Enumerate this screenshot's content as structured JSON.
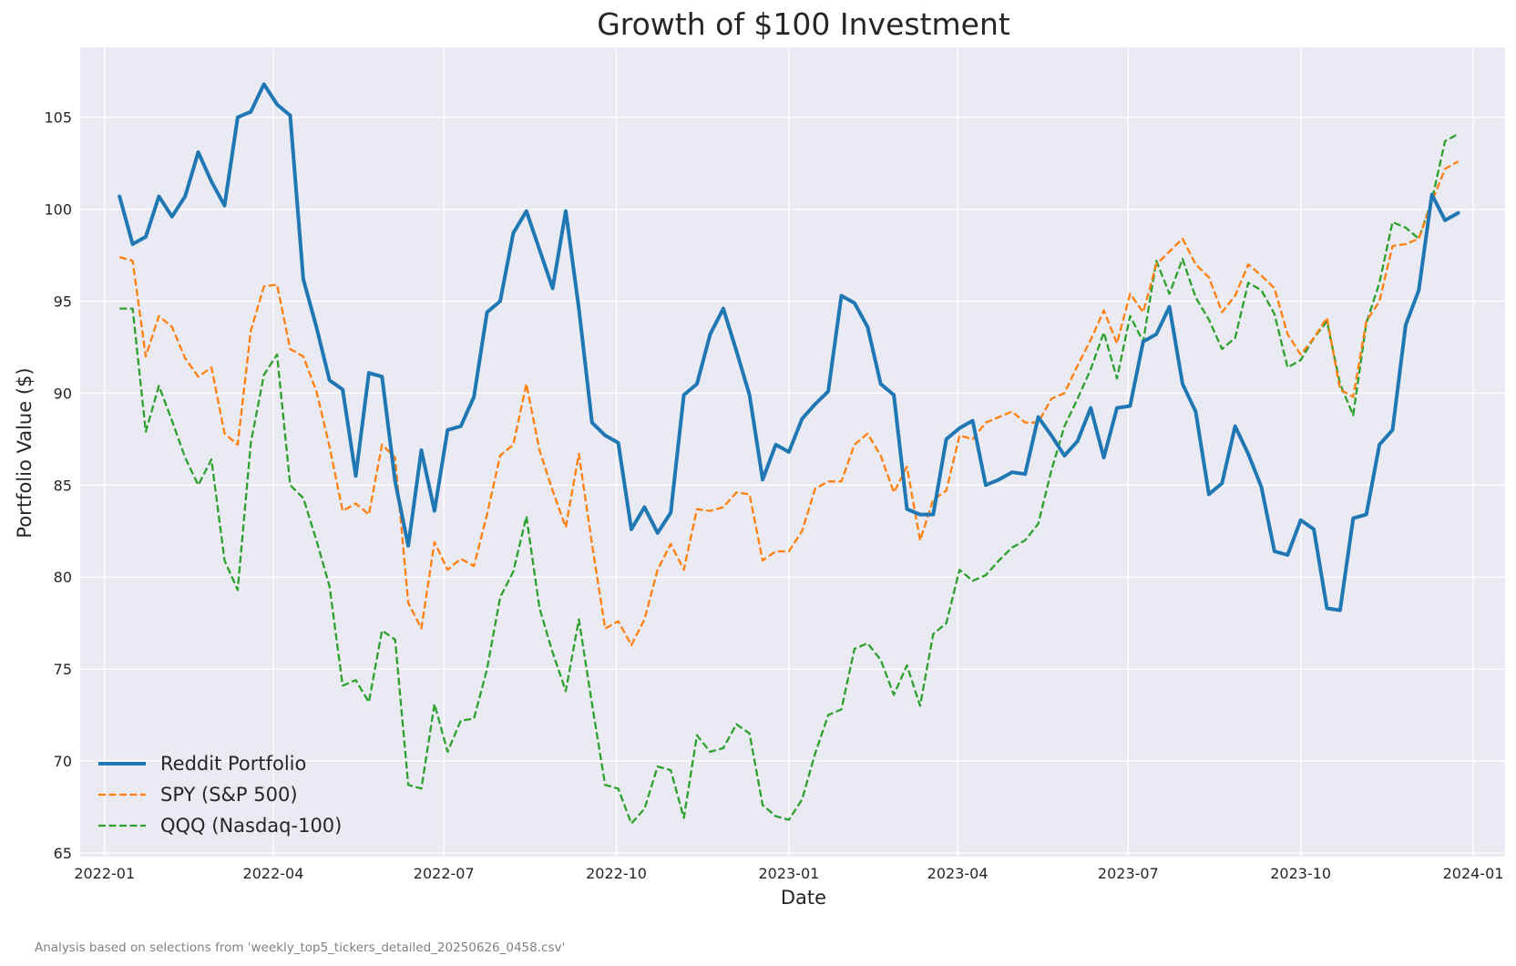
{
  "chart_data": {
    "type": "line",
    "title": "Growth of $100 Investment",
    "xlabel": "Date",
    "ylabel": "Portfolio Value ($)",
    "footnote": "Analysis based on selections from 'weekly_top5_tickers_detailed_20250626_0458.csv'",
    "ylim": [
      64.8,
      108.8
    ],
    "xlim": [
      "2021-12-19",
      "2024-01-18"
    ],
    "grid": true,
    "legend_position": "lower-left",
    "x_ticks": [
      {
        "date": "2022-01-01",
        "label": "2022-01"
      },
      {
        "date": "2022-04-01",
        "label": "2022-04"
      },
      {
        "date": "2022-07-01",
        "label": "2022-07"
      },
      {
        "date": "2022-10-01",
        "label": "2022-10"
      },
      {
        "date": "2023-01-01",
        "label": "2023-01"
      },
      {
        "date": "2023-04-01",
        "label": "2023-04"
      },
      {
        "date": "2023-07-01",
        "label": "2023-07"
      },
      {
        "date": "2023-10-01",
        "label": "2023-10"
      },
      {
        "date": "2024-01-01",
        "label": "2024-01"
      }
    ],
    "y_ticks": [
      65,
      70,
      75,
      80,
      85,
      90,
      95,
      100,
      105
    ],
    "x_start": "2022-01-09",
    "x_step_days": 7,
    "series": [
      {
        "name": "Reddit Portfolio",
        "color": "#1f77b4",
        "style": "solid",
        "values": [
          100.7,
          98.1,
          98.5,
          100.7,
          99.6,
          100.7,
          103.1,
          101.5,
          100.2,
          105.0,
          105.3,
          106.8,
          105.7,
          105.1,
          96.2,
          93.6,
          90.7,
          90.2,
          85.5,
          91.1,
          90.9,
          85.2,
          81.7,
          86.9,
          83.6,
          88.0,
          88.2,
          89.8,
          94.4,
          95.0,
          98.7,
          99.9,
          97.8,
          95.7,
          99.9,
          94.6,
          88.4,
          87.7,
          87.3,
          82.6,
          83.8,
          82.4,
          83.5,
          89.9,
          90.5,
          93.2,
          94.6,
          92.3,
          89.9,
          85.3,
          87.2,
          86.8,
          88.6,
          89.4,
          90.1,
          95.3,
          94.9,
          93.6,
          90.5,
          89.9,
          83.7,
          83.4,
          83.4,
          87.5,
          88.1,
          88.5,
          85.0,
          85.3,
          85.7,
          85.6,
          88.7,
          87.7,
          86.6,
          87.4,
          89.2,
          86.5,
          89.2,
          89.3,
          92.8,
          93.2,
          94.7,
          90.5,
          89.0,
          84.5,
          85.1,
          88.2,
          86.7,
          84.9,
          81.4,
          81.2,
          83.1,
          82.6,
          78.3,
          78.2,
          83.2,
          83.4,
          87.2,
          88.0,
          93.7,
          95.6,
          100.8,
          99.4,
          99.8
        ]
      },
      {
        "name": "SPY (S&P 500)",
        "color": "#ff7f0e",
        "style": "dashed",
        "values": [
          97.4,
          97.2,
          92.0,
          94.2,
          93.6,
          91.9,
          90.9,
          91.4,
          87.8,
          87.2,
          93.4,
          95.8,
          95.9,
          92.4,
          92.0,
          90.1,
          87.1,
          83.6,
          84.0,
          83.4,
          87.2,
          86.5,
          78.6,
          77.2,
          81.9,
          80.4,
          81.0,
          80.6,
          83.4,
          86.6,
          87.2,
          90.5,
          86.9,
          84.7,
          82.7,
          86.7,
          81.8,
          77.2,
          77.6,
          76.3,
          77.7,
          80.4,
          81.8,
          80.4,
          83.7,
          83.6,
          83.8,
          84.6,
          84.5,
          80.9,
          81.4,
          81.4,
          82.5,
          84.8,
          85.2,
          85.2,
          87.2,
          87.8,
          86.6,
          84.6,
          86.0,
          82.0,
          84.2,
          84.7,
          87.7,
          87.5,
          88.4,
          88.7,
          89.0,
          88.4,
          88.4,
          89.7,
          90.0,
          91.5,
          92.9,
          94.5,
          92.7,
          95.4,
          94.4,
          97.0,
          97.7,
          98.4,
          97.0,
          96.3,
          94.4,
          95.3,
          97.0,
          96.4,
          95.7,
          93.2,
          92.1,
          93.0,
          94.1,
          90.2,
          89.8,
          93.9,
          95.0,
          98.0,
          98.1,
          98.4,
          100.4,
          102.2,
          102.6
        ]
      },
      {
        "name": "QQQ (Nasdaq-100)",
        "color": "#2ca02c",
        "style": "dashed",
        "values": [
          94.6,
          94.6,
          87.9,
          90.4,
          88.5,
          86.5,
          85.0,
          86.4,
          80.9,
          79.3,
          87.3,
          91.0,
          92.1,
          85.0,
          84.3,
          82.0,
          79.5,
          74.1,
          74.4,
          73.2,
          77.1,
          76.6,
          68.7,
          68.5,
          73.1,
          70.5,
          72.2,
          72.3,
          75.0,
          78.9,
          80.3,
          83.3,
          78.3,
          75.9,
          73.8,
          77.7,
          73.1,
          68.7,
          68.5,
          66.6,
          67.4,
          69.7,
          69.5,
          66.9,
          71.4,
          70.5,
          70.7,
          72.0,
          71.5,
          67.6,
          67.0,
          66.8,
          67.9,
          70.4,
          72.5,
          72.8,
          76.1,
          76.4,
          75.5,
          73.6,
          75.2,
          73.0,
          76.9,
          77.5,
          80.4,
          79.8,
          80.1,
          80.9,
          81.6,
          82.0,
          82.9,
          85.8,
          88.2,
          89.7,
          91.3,
          93.3,
          90.8,
          94.2,
          92.8,
          97.2,
          95.4,
          97.3,
          95.2,
          94.0,
          92.4,
          93.0,
          96.0,
          95.6,
          94.3,
          91.4,
          91.8,
          93.0,
          93.9,
          90.5,
          88.8,
          93.8,
          96.0,
          99.3,
          99.0,
          98.4,
          100.5,
          103.7,
          104.1
        ]
      }
    ]
  }
}
